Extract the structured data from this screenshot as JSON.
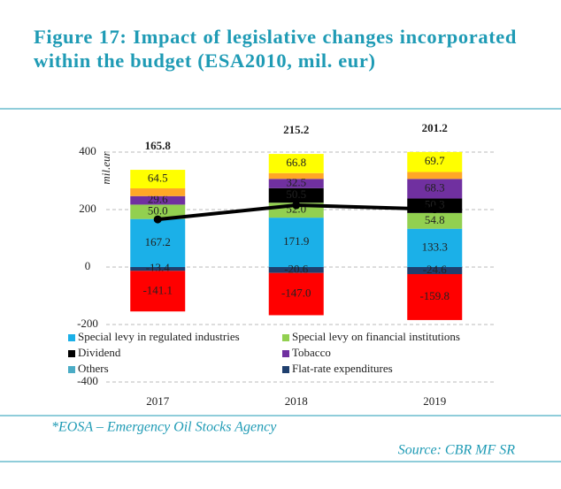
{
  "chart_data": {
    "type": "stacked-bar-line",
    "title": "Figure 17: Impact of legislative changes incorporated within the budget (ESA2010, mil. eur)",
    "y_label": "mil.eur",
    "footnote": "*EOSA – Emergency Oil Stocks Agency",
    "source": "Source: CBR MF SR",
    "categories": [
      "2017",
      "2018",
      "2019"
    ],
    "ylim": [
      -400,
      460
    ],
    "yticks": [
      400,
      200,
      0,
      -200,
      -400
    ],
    "grid": true,
    "series": [
      {
        "name": "Special levy in regulated industries",
        "color": "#1bb0e8",
        "values": [
          167.2,
          171.9,
          133.3
        ]
      },
      {
        "name": "Special levy on financial institutions",
        "color": "#92d050",
        "values": [
          50.0,
          52.0,
          54.8
        ],
        "value_labels": [
          "50.0",
          "52.0",
          "54.8"
        ]
      },
      {
        "name": "Dividend",
        "color": "#000000",
        "values": [
          null,
          50.5,
          50.3
        ]
      },
      {
        "name": "Tobacco",
        "color": "#7030a0",
        "values": [
          29.6,
          32.5,
          68.3
        ]
      },
      {
        "name": "Others",
        "color": "#4bacc6",
        "values": [
          null,
          null,
          null
        ]
      },
      {
        "name": "Flat-rate expenditures",
        "color": "#1f3f6e",
        "values": [
          -13.4,
          -20.6,
          -24.6
        ]
      },
      {
        "color": "#ffa726",
        "values": [
          27,
          20,
          24
        ],
        "value_labels": [
          null,
          null,
          null
        ]
      },
      {
        "color": "#ffff00",
        "values": [
          64.5,
          66.8,
          69.7
        ]
      },
      {
        "color": "#ff0000",
        "values": [
          -141.1,
          -147.0,
          -159.8
        ],
        "value_labels": [
          "-141.1",
          "-147.0",
          "-159.8"
        ]
      },
      {
        "type": "line",
        "color": "#000000",
        "values": [
          165.8,
          215.2,
          201.2
        ]
      }
    ]
  }
}
